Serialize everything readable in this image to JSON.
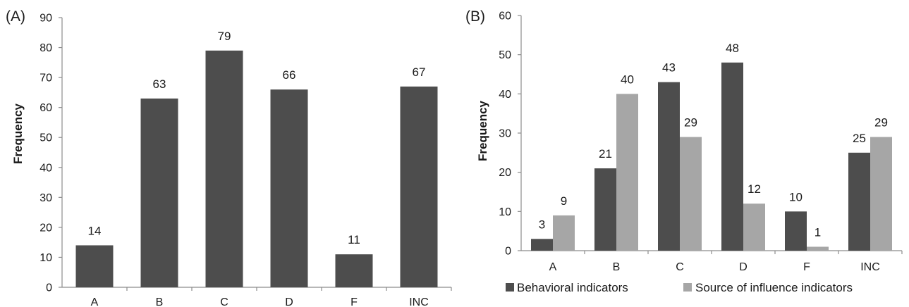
{
  "chart_data": [
    {
      "type": "bar",
      "panel_label": "(A)",
      "categories": [
        "A",
        "B",
        "C",
        "D",
        "F",
        "INC"
      ],
      "values": [
        14,
        63,
        79,
        66,
        11,
        67
      ],
      "ylabel": "Frequency",
      "ylim": [
        0,
        90
      ],
      "yticks": [
        "0",
        "10",
        "20",
        "30",
        "40",
        "50",
        "60",
        "70",
        "80",
        "90"
      ],
      "grid": false,
      "color": "#4d4d4d"
    },
    {
      "type": "bar",
      "panel_label": "(B)",
      "categories": [
        "A",
        "B",
        "C",
        "D",
        "F",
        "INC"
      ],
      "series": [
        {
          "name": "Behavioral indicators",
          "values": [
            3,
            21,
            43,
            48,
            10,
            25
          ],
          "color": "#4d4d4d"
        },
        {
          "name": "Source of influence indicators",
          "values": [
            9,
            40,
            29,
            12,
            1,
            29
          ],
          "color": "#a6a6a6"
        }
      ],
      "ylabel": "Frequency",
      "ylim": [
        0,
        60
      ],
      "yticks": [
        "0",
        "10",
        "20",
        "30",
        "40",
        "50",
        "60"
      ],
      "grid": false,
      "legend": "bottom"
    }
  ]
}
